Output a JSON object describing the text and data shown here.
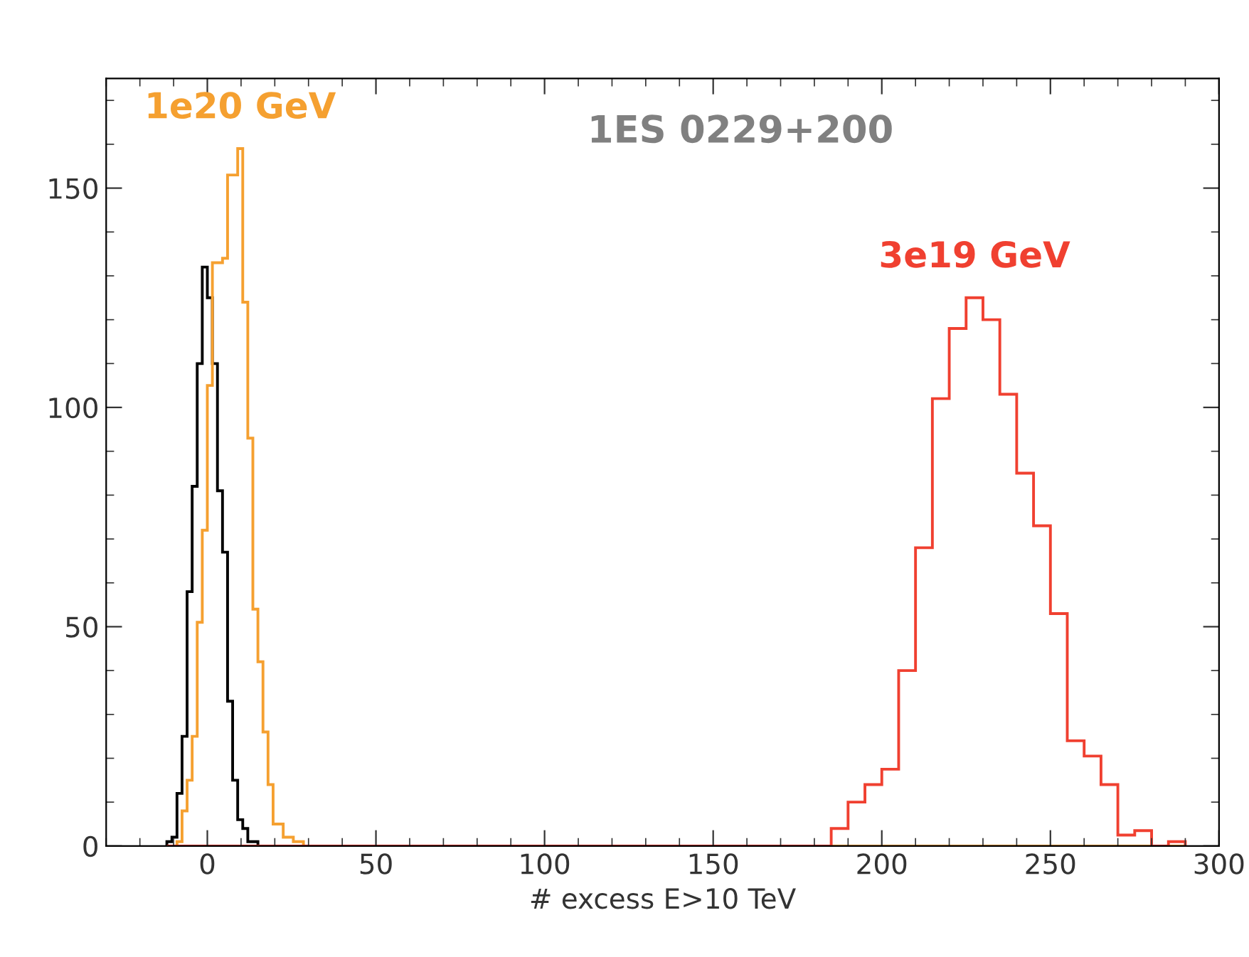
{
  "chart_data": {
    "type": "histogram",
    "title": "1ES 0229+200",
    "xlabel": "# excess E>10 TeV",
    "xlim": [
      -30,
      300
    ],
    "xticks": [
      0,
      50,
      100,
      150,
      200,
      250,
      300
    ],
    "ylim": [
      0,
      175
    ],
    "yticks": [
      0,
      50,
      100,
      150
    ],
    "grid": false,
    "bins": [
      -12,
      -10.5,
      -9,
      -7.5,
      -6,
      -4.5,
      -3,
      -1.5,
      0,
      1.5,
      3,
      4.5,
      6,
      7.5,
      9,
      10.5,
      12,
      13.5,
      15,
      16.5,
      18,
      19.5,
      21,
      22.5,
      24,
      25.5,
      27,
      28.5,
      185,
      190,
      195,
      200,
      205,
      210,
      215,
      220,
      225,
      230,
      235,
      240,
      245,
      250,
      255,
      260,
      265,
      270,
      275,
      280,
      285,
      290
    ],
    "series": [
      {
        "color": "#000000",
        "values": [
          1,
          2,
          12,
          25,
          58,
          82,
          110,
          132,
          125,
          110,
          81,
          67,
          33,
          15,
          6,
          4,
          1,
          1,
          0,
          0,
          0,
          0,
          0,
          0,
          0,
          0,
          0,
          0,
          0,
          0,
          0,
          0,
          0,
          0,
          0,
          0,
          0,
          0,
          0,
          0,
          0,
          0,
          0,
          0,
          0,
          0,
          0,
          0,
          0
        ]
      },
      {
        "name": "1e20 GeV",
        "color": "#f5a030",
        "values": [
          0,
          0,
          1,
          8,
          15,
          25,
          51,
          72,
          105,
          133,
          133,
          134,
          153,
          153,
          159,
          124,
          93,
          54,
          42,
          26,
          14,
          5,
          5,
          2,
          2,
          1,
          1,
          0,
          0,
          0,
          0,
          0,
          0,
          0,
          0,
          0,
          0,
          0,
          0,
          0,
          0,
          0,
          0,
          0,
          0,
          0,
          0,
          0,
          0
        ]
      },
      {
        "name": "3e19 GeV",
        "color": "#f04030",
        "values": [
          0,
          0,
          0,
          0,
          0,
          0,
          0,
          0,
          0,
          0,
          0,
          0,
          0,
          0,
          0,
          0,
          0,
          0,
          0,
          0,
          0,
          0,
          0,
          0,
          0,
          0,
          0,
          0,
          4,
          10,
          14,
          17.5,
          40,
          68,
          102,
          118,
          125,
          120,
          103,
          85,
          73,
          53,
          24,
          20.5,
          14,
          2.5,
          3.5,
          0,
          1
        ]
      }
    ]
  }
}
